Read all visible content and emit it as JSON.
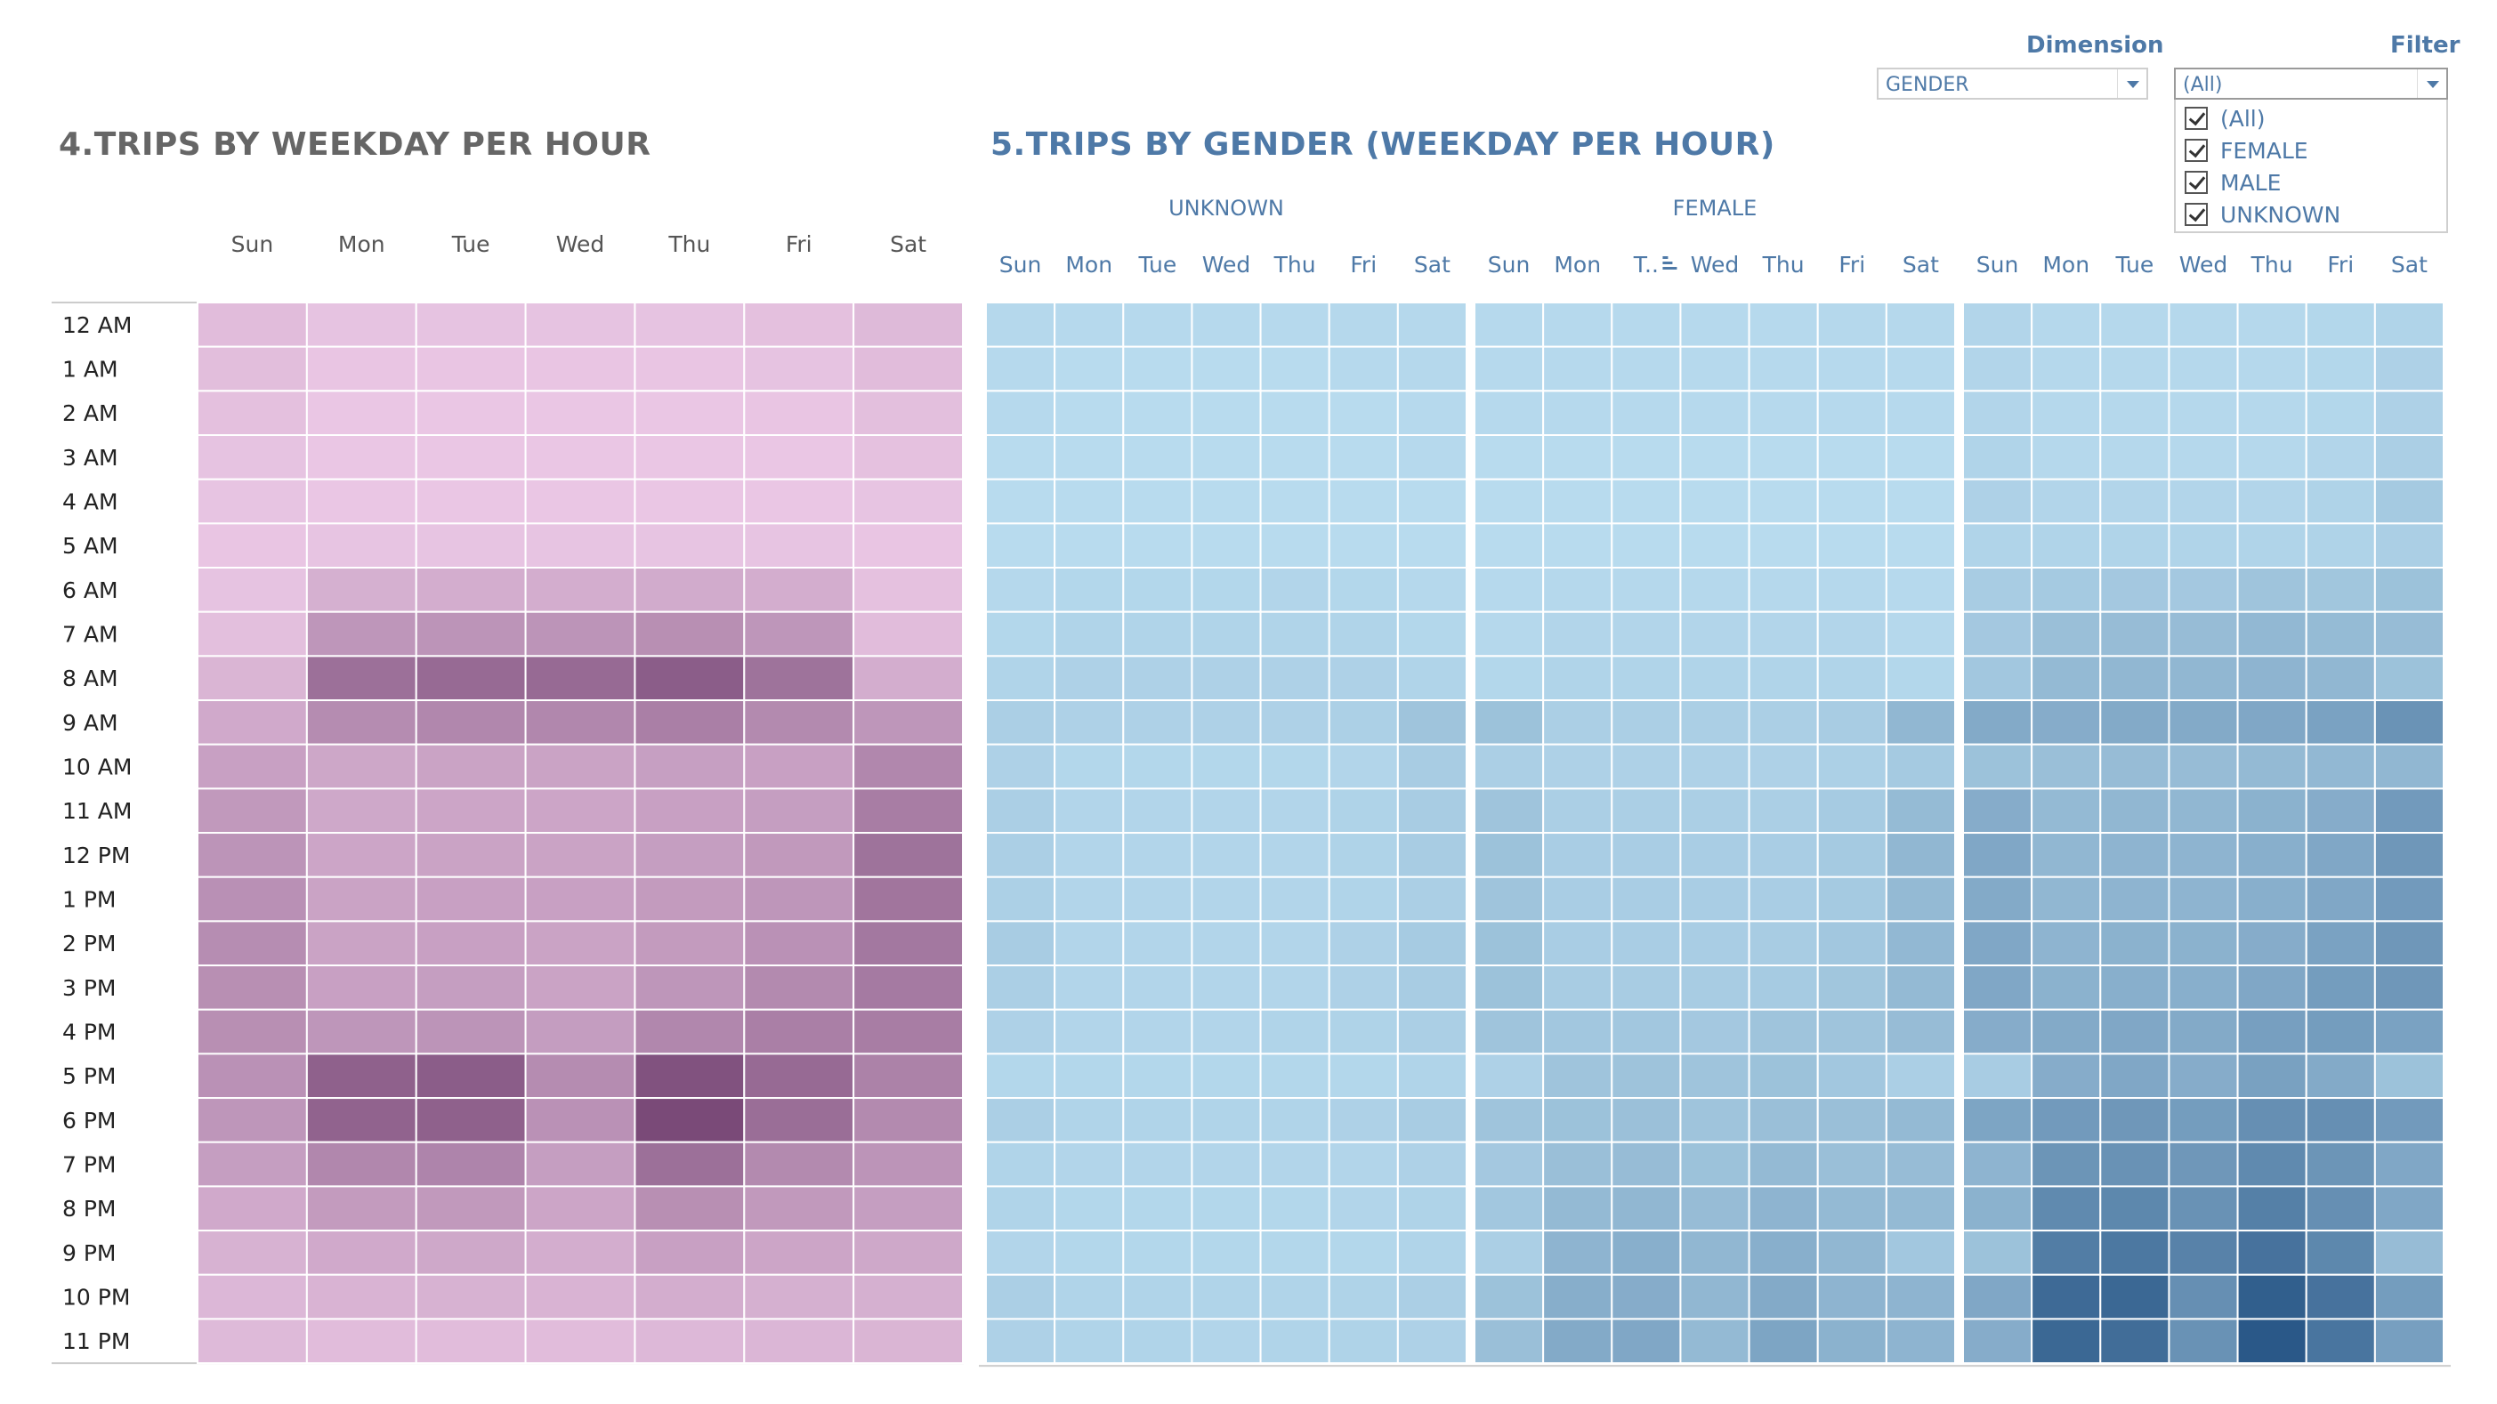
{
  "titles": {
    "left": "4.TRIPS BY WEEKDAY PER HOUR",
    "right": "5.TRIPS BY GENDER (WEEKDAY PER HOUR)"
  },
  "controls": {
    "dimension_label": "Dimension",
    "dimension_value": "GENDER",
    "filter_label": "Filter",
    "filter_value": "(All)",
    "filter_options": [
      "(All)",
      "FEMALE",
      "MALE",
      "UNKNOWN"
    ]
  },
  "colors": {
    "pink_light": "#ecc9e6",
    "pink_dark": "#7a4a78",
    "blue_light": "#b9dcef",
    "blue_dark": "#2a5888"
  },
  "chart_data": [
    {
      "type": "heatmap",
      "title": "4.TRIPS BY WEEKDAY PER HOUR",
      "columns": [
        "Sun",
        "Mon",
        "Tue",
        "Wed",
        "Thu",
        "Fri",
        "Sat"
      ],
      "rows": [
        "12 AM",
        "1 AM",
        "2 AM",
        "3 AM",
        "4 AM",
        "5 AM",
        "6 AM",
        "7 AM",
        "8 AM",
        "9 AM",
        "10 AM",
        "11 AM",
        "12 PM",
        "1 PM",
        "2 PM",
        "3 PM",
        "4 PM",
        "5 PM",
        "6 PM",
        "7 PM",
        "8 PM",
        "9 PM",
        "10 PM",
        "11 PM"
      ],
      "color_scale": "relative intensity 0-1 (light pink to dark purple)",
      "values": [
        [
          0.1,
          0.05,
          0.05,
          0.05,
          0.05,
          0.07,
          0.12
        ],
        [
          0.09,
          0.03,
          0.03,
          0.03,
          0.03,
          0.05,
          0.1
        ],
        [
          0.07,
          0.02,
          0.02,
          0.02,
          0.02,
          0.03,
          0.08
        ],
        [
          0.05,
          0.02,
          0.02,
          0.02,
          0.02,
          0.02,
          0.06
        ],
        [
          0.04,
          0.02,
          0.02,
          0.02,
          0.02,
          0.02,
          0.04
        ],
        [
          0.03,
          0.04,
          0.04,
          0.04,
          0.04,
          0.04,
          0.03
        ],
        [
          0.05,
          0.2,
          0.22,
          0.22,
          0.24,
          0.22,
          0.06
        ],
        [
          0.08,
          0.4,
          0.42,
          0.42,
          0.46,
          0.4,
          0.1
        ],
        [
          0.16,
          0.7,
          0.75,
          0.75,
          0.85,
          0.68,
          0.22
        ],
        [
          0.25,
          0.48,
          0.52,
          0.52,
          0.58,
          0.5,
          0.4
        ],
        [
          0.32,
          0.27,
          0.3,
          0.3,
          0.33,
          0.32,
          0.52
        ],
        [
          0.38,
          0.26,
          0.28,
          0.28,
          0.32,
          0.34,
          0.6
        ],
        [
          0.42,
          0.28,
          0.3,
          0.3,
          0.34,
          0.38,
          0.68
        ],
        [
          0.45,
          0.3,
          0.32,
          0.32,
          0.36,
          0.4,
          0.66
        ],
        [
          0.47,
          0.3,
          0.32,
          0.3,
          0.36,
          0.44,
          0.64
        ],
        [
          0.46,
          0.32,
          0.34,
          0.3,
          0.4,
          0.5,
          0.62
        ],
        [
          0.46,
          0.4,
          0.42,
          0.35,
          0.52,
          0.58,
          0.6
        ],
        [
          0.44,
          0.82,
          0.85,
          0.48,
          0.94,
          0.75,
          0.56
        ],
        [
          0.4,
          0.8,
          0.82,
          0.44,
          1.0,
          0.72,
          0.5
        ],
        [
          0.34,
          0.52,
          0.54,
          0.34,
          0.7,
          0.5,
          0.42
        ],
        [
          0.25,
          0.36,
          0.38,
          0.28,
          0.46,
          0.38,
          0.34
        ],
        [
          0.18,
          0.25,
          0.26,
          0.22,
          0.32,
          0.28,
          0.26
        ],
        [
          0.14,
          0.17,
          0.18,
          0.17,
          0.22,
          0.2,
          0.2
        ],
        [
          0.12,
          0.1,
          0.1,
          0.1,
          0.13,
          0.15,
          0.16
        ]
      ]
    },
    {
      "type": "heatmap",
      "title": "5.TRIPS BY GENDER (WEEKDAY PER HOUR)",
      "columns": [
        "Sun",
        "Mon",
        "Tue",
        "Wed",
        "Thu",
        "Fri",
        "Sat"
      ],
      "column_labels_printed": {
        "FEMALE": [
          "Sun",
          "Mon",
          "T..",
          "Wed",
          "Thu",
          "Fri",
          "Sat"
        ]
      },
      "rows": [
        "12 AM",
        "1 AM",
        "2 AM",
        "3 AM",
        "4 AM",
        "5 AM",
        "6 AM",
        "7 AM",
        "8 AM",
        "9 AM",
        "10 AM",
        "11 AM",
        "12 PM",
        "1 PM",
        "2 PM",
        "3 PM",
        "4 PM",
        "5 PM",
        "6 PM",
        "7 PM",
        "8 PM",
        "9 PM",
        "10 PM",
        "11 PM"
      ],
      "panels": [
        "UNKNOWN",
        "FEMALE",
        ""
      ],
      "color_scale": "relative intensity 0-1 (light blue to dark blue)",
      "series": [
        {
          "name": "UNKNOWN",
          "values": [
            [
              0.03,
              0.02,
              0.02,
              0.02,
              0.02,
              0.03,
              0.03
            ],
            [
              0.02,
              0.01,
              0.01,
              0.01,
              0.01,
              0.02,
              0.03
            ],
            [
              0.02,
              0.01,
              0.01,
              0.01,
              0.01,
              0.01,
              0.02
            ],
            [
              0.01,
              0.01,
              0.01,
              0.01,
              0.01,
              0.01,
              0.02
            ],
            [
              0.01,
              0.01,
              0.01,
              0.01,
              0.01,
              0.01,
              0.01
            ],
            [
              0.01,
              0.01,
              0.01,
              0.01,
              0.01,
              0.01,
              0.01
            ],
            [
              0.03,
              0.04,
              0.04,
              0.04,
              0.05,
              0.04,
              0.03
            ],
            [
              0.04,
              0.06,
              0.06,
              0.06,
              0.06,
              0.06,
              0.04
            ],
            [
              0.06,
              0.08,
              0.08,
              0.08,
              0.08,
              0.08,
              0.06
            ],
            [
              0.1,
              0.08,
              0.08,
              0.08,
              0.08,
              0.09,
              0.18
            ],
            [
              0.08,
              0.04,
              0.04,
              0.04,
              0.04,
              0.05,
              0.12
            ],
            [
              0.1,
              0.05,
              0.05,
              0.05,
              0.05,
              0.07,
              0.12
            ],
            [
              0.1,
              0.05,
              0.05,
              0.05,
              0.05,
              0.07,
              0.12
            ],
            [
              0.09,
              0.05,
              0.05,
              0.05,
              0.05,
              0.06,
              0.1
            ],
            [
              0.12,
              0.05,
              0.05,
              0.05,
              0.05,
              0.08,
              0.13
            ],
            [
              0.1,
              0.05,
              0.05,
              0.05,
              0.05,
              0.08,
              0.12
            ],
            [
              0.08,
              0.05,
              0.05,
              0.05,
              0.06,
              0.07,
              0.1
            ],
            [
              0.04,
              0.04,
              0.04,
              0.04,
              0.04,
              0.04,
              0.06
            ],
            [
              0.1,
              0.06,
              0.06,
              0.06,
              0.06,
              0.08,
              0.12
            ],
            [
              0.06,
              0.05,
              0.05,
              0.05,
              0.05,
              0.05,
              0.08
            ],
            [
              0.06,
              0.04,
              0.04,
              0.04,
              0.04,
              0.05,
              0.07
            ],
            [
              0.05,
              0.04,
              0.04,
              0.04,
              0.04,
              0.04,
              0.06
            ],
            [
              0.1,
              0.06,
              0.06,
              0.06,
              0.06,
              0.07,
              0.1
            ],
            [
              0.08,
              0.06,
              0.06,
              0.05,
              0.06,
              0.07,
              0.08
            ]
          ]
        },
        {
          "name": "FEMALE",
          "values": [
            [
              0.02,
              0.02,
              0.02,
              0.02,
              0.02,
              0.03,
              0.03
            ],
            [
              0.02,
              0.02,
              0.02,
              0.02,
              0.02,
              0.02,
              0.02
            ],
            [
              0.02,
              0.02,
              0.02,
              0.02,
              0.02,
              0.02,
              0.02
            ],
            [
              0.01,
              0.01,
              0.01,
              0.01,
              0.01,
              0.01,
              0.01
            ],
            [
              0.01,
              0.01,
              0.01,
              0.01,
              0.01,
              0.01,
              0.01
            ],
            [
              0.01,
              0.01,
              0.01,
              0.01,
              0.01,
              0.01,
              0.01
            ],
            [
              0.02,
              0.03,
              0.03,
              0.03,
              0.03,
              0.03,
              0.02
            ],
            [
              0.03,
              0.05,
              0.05,
              0.05,
              0.05,
              0.05,
              0.03
            ],
            [
              0.04,
              0.06,
              0.06,
              0.06,
              0.06,
              0.06,
              0.04
            ],
            [
              0.2,
              0.1,
              0.1,
              0.1,
              0.1,
              0.12,
              0.28
            ],
            [
              0.1,
              0.08,
              0.08,
              0.08,
              0.08,
              0.09,
              0.14
            ],
            [
              0.18,
              0.1,
              0.1,
              0.1,
              0.1,
              0.13,
              0.25
            ],
            [
              0.2,
              0.11,
              0.11,
              0.11,
              0.11,
              0.14,
              0.28
            ],
            [
              0.18,
              0.11,
              0.11,
              0.11,
              0.11,
              0.14,
              0.26
            ],
            [
              0.2,
              0.11,
              0.11,
              0.11,
              0.12,
              0.16,
              0.27
            ],
            [
              0.2,
              0.12,
              0.12,
              0.12,
              0.13,
              0.17,
              0.26
            ],
            [
              0.18,
              0.16,
              0.16,
              0.15,
              0.18,
              0.18,
              0.24
            ],
            [
              0.08,
              0.18,
              0.19,
              0.18,
              0.2,
              0.16,
              0.1
            ],
            [
              0.18,
              0.2,
              0.21,
              0.18,
              0.22,
              0.22,
              0.26
            ],
            [
              0.15,
              0.22,
              0.24,
              0.2,
              0.26,
              0.22,
              0.24
            ],
            [
              0.16,
              0.26,
              0.28,
              0.24,
              0.3,
              0.26,
              0.26
            ],
            [
              0.1,
              0.3,
              0.34,
              0.28,
              0.34,
              0.28,
              0.16
            ],
            [
              0.2,
              0.35,
              0.36,
              0.28,
              0.38,
              0.3,
              0.3
            ],
            [
              0.22,
              0.38,
              0.4,
              0.26,
              0.42,
              0.32,
              0.3
            ]
          ]
        },
        {
          "name": "",
          "values": [
            [
              0.05,
              0.03,
              0.03,
              0.03,
              0.03,
              0.04,
              0.06
            ],
            [
              0.05,
              0.03,
              0.03,
              0.03,
              0.03,
              0.04,
              0.08
            ],
            [
              0.05,
              0.03,
              0.03,
              0.03,
              0.03,
              0.04,
              0.08
            ],
            [
              0.06,
              0.03,
              0.03,
              0.03,
              0.03,
              0.05,
              0.1
            ],
            [
              0.08,
              0.05,
              0.05,
              0.05,
              0.05,
              0.07,
              0.14
            ],
            [
              0.06,
              0.06,
              0.06,
              0.06,
              0.06,
              0.07,
              0.1
            ],
            [
              0.12,
              0.14,
              0.15,
              0.15,
              0.18,
              0.17,
              0.2
            ],
            [
              0.15,
              0.22,
              0.24,
              0.24,
              0.27,
              0.25,
              0.24
            ],
            [
              0.16,
              0.26,
              0.28,
              0.28,
              0.3,
              0.28,
              0.2
            ],
            [
              0.38,
              0.36,
              0.38,
              0.38,
              0.4,
              0.44,
              0.55
            ],
            [
              0.2,
              0.22,
              0.24,
              0.24,
              0.26,
              0.27,
              0.28
            ],
            [
              0.36,
              0.26,
              0.28,
              0.28,
              0.32,
              0.36,
              0.5
            ],
            [
              0.4,
              0.28,
              0.3,
              0.3,
              0.34,
              0.4,
              0.52
            ],
            [
              0.38,
              0.28,
              0.3,
              0.3,
              0.34,
              0.4,
              0.5
            ],
            [
              0.4,
              0.3,
              0.32,
              0.32,
              0.36,
              0.44,
              0.52
            ],
            [
              0.4,
              0.32,
              0.34,
              0.34,
              0.4,
              0.48,
              0.52
            ],
            [
              0.36,
              0.38,
              0.4,
              0.38,
              0.46,
              0.48,
              0.44
            ],
            [
              0.12,
              0.36,
              0.4,
              0.36,
              0.45,
              0.38,
              0.2
            ],
            [
              0.42,
              0.5,
              0.52,
              0.48,
              0.58,
              0.58,
              0.5
            ],
            [
              0.3,
              0.54,
              0.56,
              0.52,
              0.62,
              0.54,
              0.4
            ],
            [
              0.32,
              0.62,
              0.64,
              0.56,
              0.7,
              0.58,
              0.4
            ],
            [
              0.2,
              0.72,
              0.76,
              0.68,
              0.8,
              0.64,
              0.24
            ],
            [
              0.4,
              0.86,
              0.88,
              0.58,
              0.95,
              0.8,
              0.48
            ],
            [
              0.36,
              0.88,
              0.84,
              0.56,
              1.0,
              0.78,
              0.46
            ]
          ]
        }
      ]
    }
  ]
}
